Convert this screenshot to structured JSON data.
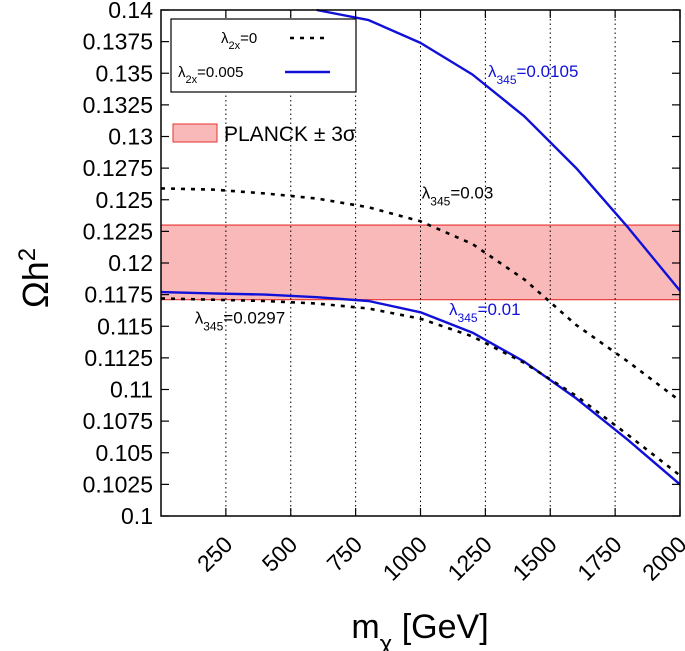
{
  "chart_data": {
    "type": "line",
    "xlabel": {
      "text": "m",
      "sub": "χ",
      "rest": " [GeV]"
    },
    "ylabel": {
      "text": "Ωh",
      "sup": "2"
    },
    "xlim": [
      0,
      2000
    ],
    "ylim": [
      0.1,
      0.14
    ],
    "x_ticks": [
      {
        "value": 250,
        "label": "250"
      },
      {
        "value": 500,
        "label": "500"
      },
      {
        "value": 750,
        "label": "750"
      },
      {
        "value": 1000,
        "label": "1000"
      },
      {
        "value": 1250,
        "label": "1250"
      },
      {
        "value": 1500,
        "label": "1500"
      },
      {
        "value": 1750,
        "label": "1750"
      },
      {
        "value": 2000,
        "label": "2000"
      }
    ],
    "y_ticks": [
      {
        "value": 0.1,
        "label": "0.1"
      },
      {
        "value": 0.1025,
        "label": "0.1025"
      },
      {
        "value": 0.105,
        "label": "0.105"
      },
      {
        "value": 0.1075,
        "label": "0.1075"
      },
      {
        "value": 0.11,
        "label": "0.11"
      },
      {
        "value": 0.1125,
        "label": "0.1125"
      },
      {
        "value": 0.115,
        "label": "0.115"
      },
      {
        "value": 0.1175,
        "label": "0.1175"
      },
      {
        "value": 0.12,
        "label": "0.12"
      },
      {
        "value": 0.1225,
        "label": "0.1225"
      },
      {
        "value": 0.125,
        "label": "0.125"
      },
      {
        "value": 0.1275,
        "label": "0.1275"
      },
      {
        "value": 0.13,
        "label": "0.13"
      },
      {
        "value": 0.1325,
        "label": "0.1325"
      },
      {
        "value": 0.135,
        "label": "0.135"
      },
      {
        "value": 0.1375,
        "label": "0.1375"
      },
      {
        "value": 0.14,
        "label": "0.14"
      }
    ],
    "grid": {
      "vertical_dotted": true,
      "horizontal": false
    },
    "band": {
      "label": "PLANCK ± 3σ",
      "y_low": 0.1171,
      "y_high": 0.123,
      "fill": "#f9b9b9",
      "edge": "#e8322f"
    },
    "legend": {
      "position": "top-left",
      "entries": [
        {
          "label_main": "λ",
          "label_sub": "2x",
          "label_rest": "=0",
          "style": "dashed",
          "color": "#000000"
        },
        {
          "label_main": "λ",
          "label_sub": "2x",
          "label_rest": "=0.005",
          "style": "solid",
          "color": "#1010d8"
        }
      ]
    },
    "series": [
      {
        "name": "λ345=0.0105 (λ2x=0.005)",
        "style": "solid",
        "color": "#1010d8",
        "x": [
          600,
          800,
          1000,
          1200,
          1400,
          1600,
          1800,
          2000
        ],
        "y": [
          0.14,
          0.1392,
          0.1374,
          0.1349,
          0.1316,
          0.1275,
          0.1228,
          0.1178
        ]
      },
      {
        "name": "λ345=0.03 (λ2x=0)",
        "style": "dashed",
        "color": "#000000",
        "x": [
          0,
          200,
          400,
          600,
          800,
          1000,
          1200,
          1400,
          1600,
          1800,
          2000
        ],
        "y": [
          0.1259,
          0.1258,
          0.1255,
          0.1251,
          0.1244,
          0.1233,
          0.1215,
          0.1187,
          0.1151,
          0.1122,
          0.1091
        ]
      },
      {
        "name": "λ345=0.01 (λ2x=0.005)",
        "style": "solid",
        "color": "#1010d8",
        "x": [
          0,
          200,
          400,
          600,
          800,
          1000,
          1200,
          1400,
          1600,
          1800,
          2000
        ],
        "y": [
          0.1177,
          0.1176,
          0.1175,
          0.1173,
          0.117,
          0.1161,
          0.1145,
          0.1122,
          0.1093,
          0.106,
          0.1025
        ]
      },
      {
        "name": "λ345=0.0297 (λ2x=0)",
        "style": "dashed",
        "color": "#000000",
        "x": [
          0,
          200,
          400,
          600,
          800,
          1000,
          1200,
          1400,
          1600,
          1800,
          2000
        ],
        "y": [
          0.1172,
          0.1171,
          0.117,
          0.1168,
          0.1164,
          0.1156,
          0.1142,
          0.1121,
          0.1095,
          0.1064,
          0.1032
        ]
      }
    ],
    "annotations": [
      {
        "main": "λ",
        "sub": "345",
        "rest": "=0.0105",
        "color": "#1010d8",
        "x": 1260,
        "y": 0.1347
      },
      {
        "main": "λ",
        "sub": "345",
        "rest": "=0.03",
        "color": "#000000",
        "x": 1005,
        "y": 0.1251
      },
      {
        "main": "λ",
        "sub": "345",
        "rest": "=0.01",
        "color": "#1010d8",
        "x": 1110,
        "y": 0.1159
      },
      {
        "main": "λ",
        "sub": "345",
        "rest": "=0.0297",
        "color": "#000000",
        "x": 130,
        "y": 0.1152
      }
    ]
  }
}
